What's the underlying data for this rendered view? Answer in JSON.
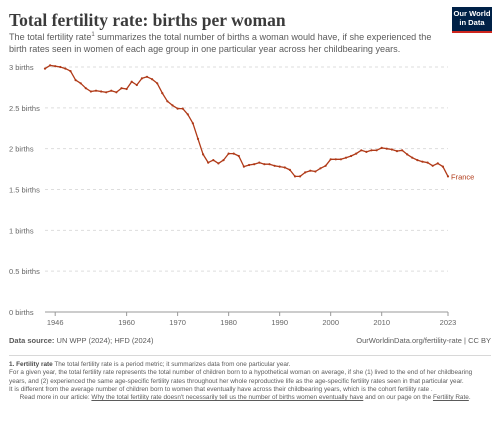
{
  "header": {
    "title": "Total fertility rate: births per woman",
    "subtitle": "The total fertility rate",
    "subtitle_sup": "1",
    "subtitle_rest": " summarizes the total number of births a woman would have, if she experienced the birth rates seen in women of each age group in one particular year across her childbearing years."
  },
  "logo": {
    "line1": "Our World",
    "line2": "in Data"
  },
  "chart_data": {
    "type": "line",
    "title": "Total fertility rate: births per woman",
    "xlim": [
      1944,
      2023
    ],
    "ylim": [
      0,
      3
    ],
    "y_ticks": [
      0,
      0.5,
      1,
      1.5,
      2,
      2.5,
      3
    ],
    "y_tick_labels": [
      "0 births",
      "0.5 births",
      "1 births",
      "1.5 births",
      "2 births",
      "2.5 births",
      "3 births"
    ],
    "x_ticks": [
      1946,
      1960,
      1970,
      1980,
      1990,
      2000,
      2010,
      2023
    ],
    "x_tick_labels": [
      "1946",
      "1960",
      "1970",
      "1980",
      "1990",
      "2000",
      "2010",
      "2023"
    ],
    "grid": "horizontal dashed",
    "line_color": "#b03a18",
    "series": [
      {
        "name": "France",
        "x": [
          1944,
          1945,
          1946,
          1947,
          1948,
          1949,
          1950,
          1951,
          1952,
          1953,
          1954,
          1955,
          1956,
          1957,
          1958,
          1959,
          1960,
          1961,
          1962,
          1963,
          1964,
          1965,
          1966,
          1967,
          1968,
          1969,
          1970,
          1971,
          1972,
          1973,
          1974,
          1975,
          1976,
          1977,
          1978,
          1979,
          1980,
          1981,
          1982,
          1983,
          1984,
          1985,
          1986,
          1987,
          1988,
          1989,
          1990,
          1991,
          1992,
          1993,
          1994,
          1995,
          1996,
          1997,
          1998,
          1999,
          2000,
          2001,
          2002,
          2003,
          2004,
          2005,
          2006,
          2007,
          2008,
          2009,
          2010,
          2011,
          2012,
          2013,
          2014,
          2015,
          2016,
          2017,
          2018,
          2019,
          2020,
          2021,
          2022,
          2023
        ],
        "values": [
          2.98,
          3.02,
          3.01,
          3.0,
          2.98,
          2.95,
          2.84,
          2.8,
          2.74,
          2.7,
          2.71,
          2.7,
          2.69,
          2.71,
          2.69,
          2.74,
          2.73,
          2.82,
          2.78,
          2.86,
          2.88,
          2.85,
          2.8,
          2.68,
          2.58,
          2.53,
          2.49,
          2.49,
          2.42,
          2.31,
          2.12,
          1.93,
          1.83,
          1.86,
          1.82,
          1.86,
          1.94,
          1.94,
          1.91,
          1.78,
          1.8,
          1.81,
          1.83,
          1.81,
          1.81,
          1.79,
          1.78,
          1.77,
          1.74,
          1.66,
          1.66,
          1.71,
          1.73,
          1.72,
          1.76,
          1.79,
          1.87,
          1.87,
          1.87,
          1.89,
          1.91,
          1.94,
          1.98,
          1.96,
          1.98,
          1.98,
          2.01,
          2.0,
          1.99,
          1.97,
          1.98,
          1.93,
          1.89,
          1.86,
          1.84,
          1.83,
          1.79,
          1.82,
          1.78,
          1.66
        ]
      }
    ]
  },
  "footer": {
    "source_label": "Data source:",
    "source_text": " UN WPP (2024); HFD (2024)",
    "url": "OurWorldinData.org/fertility-rate | CC BY"
  },
  "notes": {
    "n1_label": "1. Fertility rate",
    "n1_line1": " The total fertility rate is a period metric; it summarizes data from one particular year.",
    "n1_line2": "For a given year, the total fertility rate represents the total number of children born to a hypothetical woman on average, if she (1) lived to the end of her childbearing years, and (2) experienced the same age-specific fertility rates throughout her whole reproductive life as the age-specific fertility rates seen in that particular year.",
    "n1_line3": "It is different from the average number of children born to women that eventually have across their childbearing years, which is the cohort fertility rate .",
    "read_prefix": "Read more in our article: ",
    "read_link": "Why the total fertility rate doesn't necessarily tell us the number of births women eventually have",
    "read_mid": " and on our page on the ",
    "read_link2": "Fertility Rate",
    "read_end": "."
  }
}
